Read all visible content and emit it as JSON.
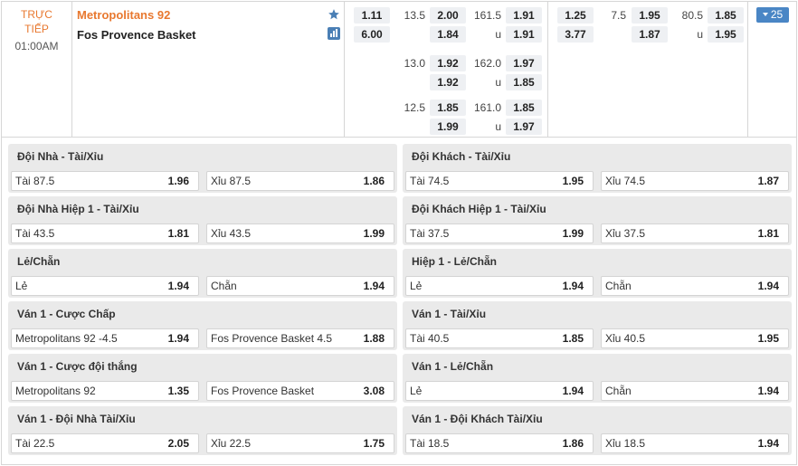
{
  "match": {
    "status_line1": "TRỰC",
    "status_line2": "TIẾP",
    "time": "01:00AM",
    "home_team": "Metropolitans 92",
    "away_team": "Fos Provence Basket",
    "more_count": "25",
    "ml": {
      "home": "1.11",
      "away": "6.00"
    },
    "handicap_rows": [
      {
        "line": "13.5",
        "home": "2.00",
        "away": "1.84"
      },
      {
        "line": "13.0",
        "home": "1.92",
        "away": "1.92"
      },
      {
        "line": "12.5",
        "home": "1.85",
        "away": "1.99"
      }
    ],
    "total_rows": [
      {
        "line": "161.5",
        "over": "1.91",
        "under_label": "u",
        "under": "1.91"
      },
      {
        "line": "162.0",
        "over": "1.97",
        "under_label": "u",
        "under": "1.85"
      },
      {
        "line": "161.0",
        "over": "1.85",
        "under_label": "u",
        "under": "1.97"
      }
    ],
    "h1_ml": {
      "home": "1.25",
      "away": "3.77"
    },
    "h1_handicap": {
      "line": "7.5",
      "home": "1.95",
      "away": "1.87"
    },
    "h1_total": {
      "line": "80.5",
      "over": "1.85",
      "under_label": "u",
      "under": "1.95"
    }
  },
  "markets": [
    {
      "title": "Đội Nhà - Tài/Xỉu",
      "left": {
        "name": "Tài 87.5",
        "price": "1.96"
      },
      "right": {
        "name": "Xỉu 87.5",
        "price": "1.86"
      }
    },
    {
      "title": "Đội Khách - Tài/Xỉu",
      "left": {
        "name": "Tài 74.5",
        "price": "1.95"
      },
      "right": {
        "name": "Xỉu 74.5",
        "price": "1.87"
      }
    },
    {
      "title": "Đội Nhà Hiệp 1 - Tài/Xỉu",
      "left": {
        "name": "Tài 43.5",
        "price": "1.81"
      },
      "right": {
        "name": "Xỉu 43.5",
        "price": "1.99"
      }
    },
    {
      "title": "Đội Khách Hiệp 1 - Tài/Xỉu",
      "left": {
        "name": "Tài 37.5",
        "price": "1.99"
      },
      "right": {
        "name": "Xỉu 37.5",
        "price": "1.81"
      }
    },
    {
      "title": "Lẻ/Chẵn",
      "left": {
        "name": "Lẻ",
        "price": "1.94"
      },
      "right": {
        "name": "Chẵn",
        "price": "1.94"
      }
    },
    {
      "title": "Hiệp 1 - Lẻ/Chẵn",
      "left": {
        "name": "Lẻ",
        "price": "1.94"
      },
      "right": {
        "name": "Chẵn",
        "price": "1.94"
      }
    },
    {
      "title": "Ván 1 - Cược Chấp",
      "left": {
        "name": "Metropolitans 92 -4.5",
        "price": "1.94"
      },
      "right": {
        "name": "Fos Provence Basket 4.5",
        "price": "1.88"
      }
    },
    {
      "title": "Ván 1 - Tài/Xỉu",
      "left": {
        "name": "Tài 40.5",
        "price": "1.85"
      },
      "right": {
        "name": "Xỉu 40.5",
        "price": "1.95"
      }
    },
    {
      "title": "Ván 1 - Cược đội thắng",
      "left": {
        "name": "Metropolitans 92",
        "price": "1.35"
      },
      "right": {
        "name": "Fos Provence Basket",
        "price": "3.08"
      }
    },
    {
      "title": "Ván 1 - Lẻ/Chẵn",
      "left": {
        "name": "Lẻ",
        "price": "1.94"
      },
      "right": {
        "name": "Chẵn",
        "price": "1.94"
      }
    },
    {
      "title": "Ván 1 - Đội Nhà Tài/Xỉu",
      "left": {
        "name": "Tài 22.5",
        "price": "2.05"
      },
      "right": {
        "name": "Xỉu 22.5",
        "price": "1.75"
      }
    },
    {
      "title": "Ván 1 - Đội Khách Tài/Xỉu",
      "left": {
        "name": "Tài 18.5",
        "price": "1.86"
      },
      "right": {
        "name": "Xỉu 18.5",
        "price": "1.94"
      }
    }
  ]
}
